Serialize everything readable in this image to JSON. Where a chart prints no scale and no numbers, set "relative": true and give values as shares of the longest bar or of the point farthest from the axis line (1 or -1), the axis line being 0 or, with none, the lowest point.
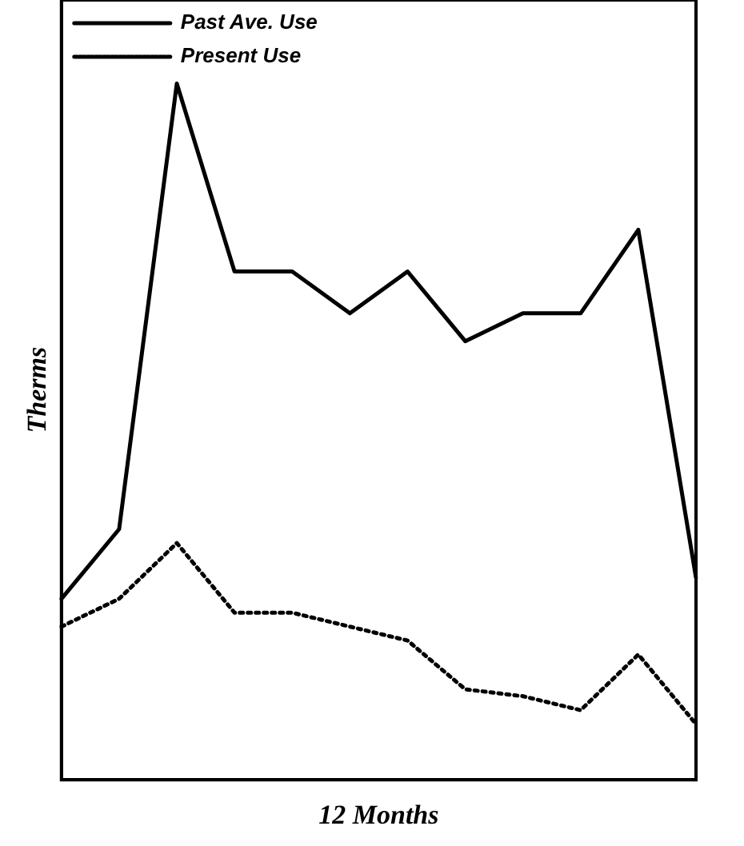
{
  "chart_data": {
    "type": "line",
    "relative": true,
    "xlabel": "12 Months",
    "ylabel": "Therms",
    "categories": [
      null,
      null,
      null,
      null,
      null,
      null,
      null,
      null,
      null,
      null,
      null,
      null
    ],
    "legend": "top left",
    "marker": "none",
    "grid": false,
    "tick_labels": false,
    "series": [
      {
        "name": "Past Ave. Use",
        "color": "#000000",
        "line_style": "solid",
        "values": [
          0.26,
          0.36,
          1,
          0.73,
          0.73,
          0.67,
          0.73,
          0.63,
          0.67,
          0.67,
          0.79,
          0.29
        ]
      },
      {
        "name": "Present Use",
        "color": "#000000",
        "line_style": "dotted",
        "values": [
          0.22,
          0.26,
          0.34,
          0.24,
          0.24,
          0.22,
          0.2,
          0.13,
          0.12,
          0.1,
          0.18,
          0.08
        ]
      }
    ]
  }
}
